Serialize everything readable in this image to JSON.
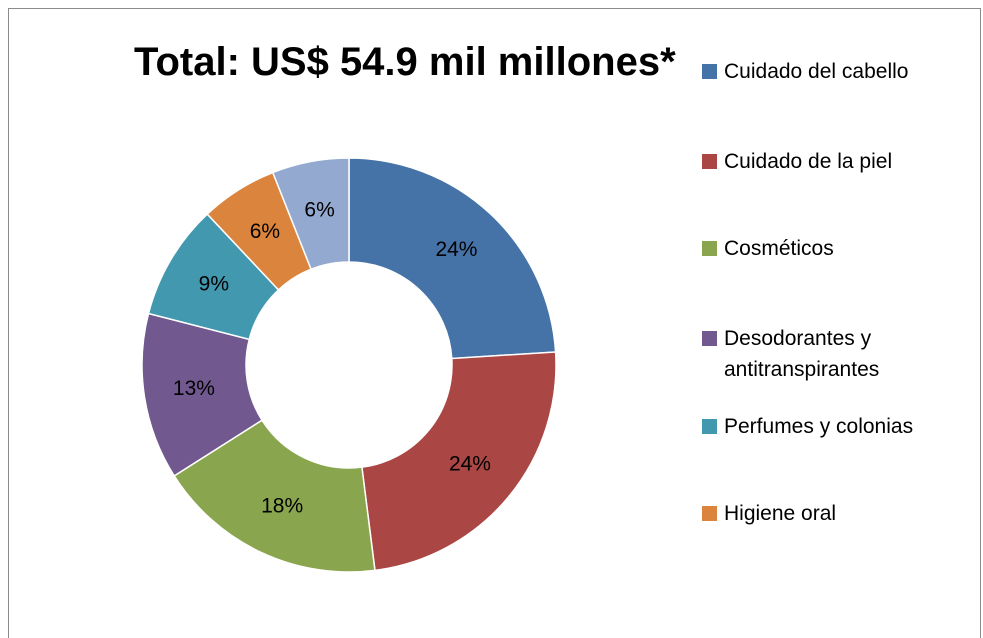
{
  "chart_data": {
    "type": "pie",
    "variant": "doughnut",
    "title": "Total: US$ 54.9 mil millones*",
    "categories": [
      "Cuidado del cabello",
      "Cuidado de la piel",
      "Cosméticos",
      "Desodorantes y antitranspirantes",
      "Perfumes y colonias",
      "Higiene oral",
      ""
    ],
    "values": [
      24,
      24,
      18,
      13,
      9,
      6,
      6
    ],
    "value_labels": [
      "24%",
      "24%",
      "18%",
      "13%",
      "9%",
      "6%",
      "6%"
    ],
    "colors": [
      "#4572A7",
      "#AA4643",
      "#89A54E",
      "#71588F",
      "#4198AF",
      "#DB843D",
      "#93A9CF"
    ],
    "legend_position": "right",
    "legend_visible_entries": 6
  }
}
